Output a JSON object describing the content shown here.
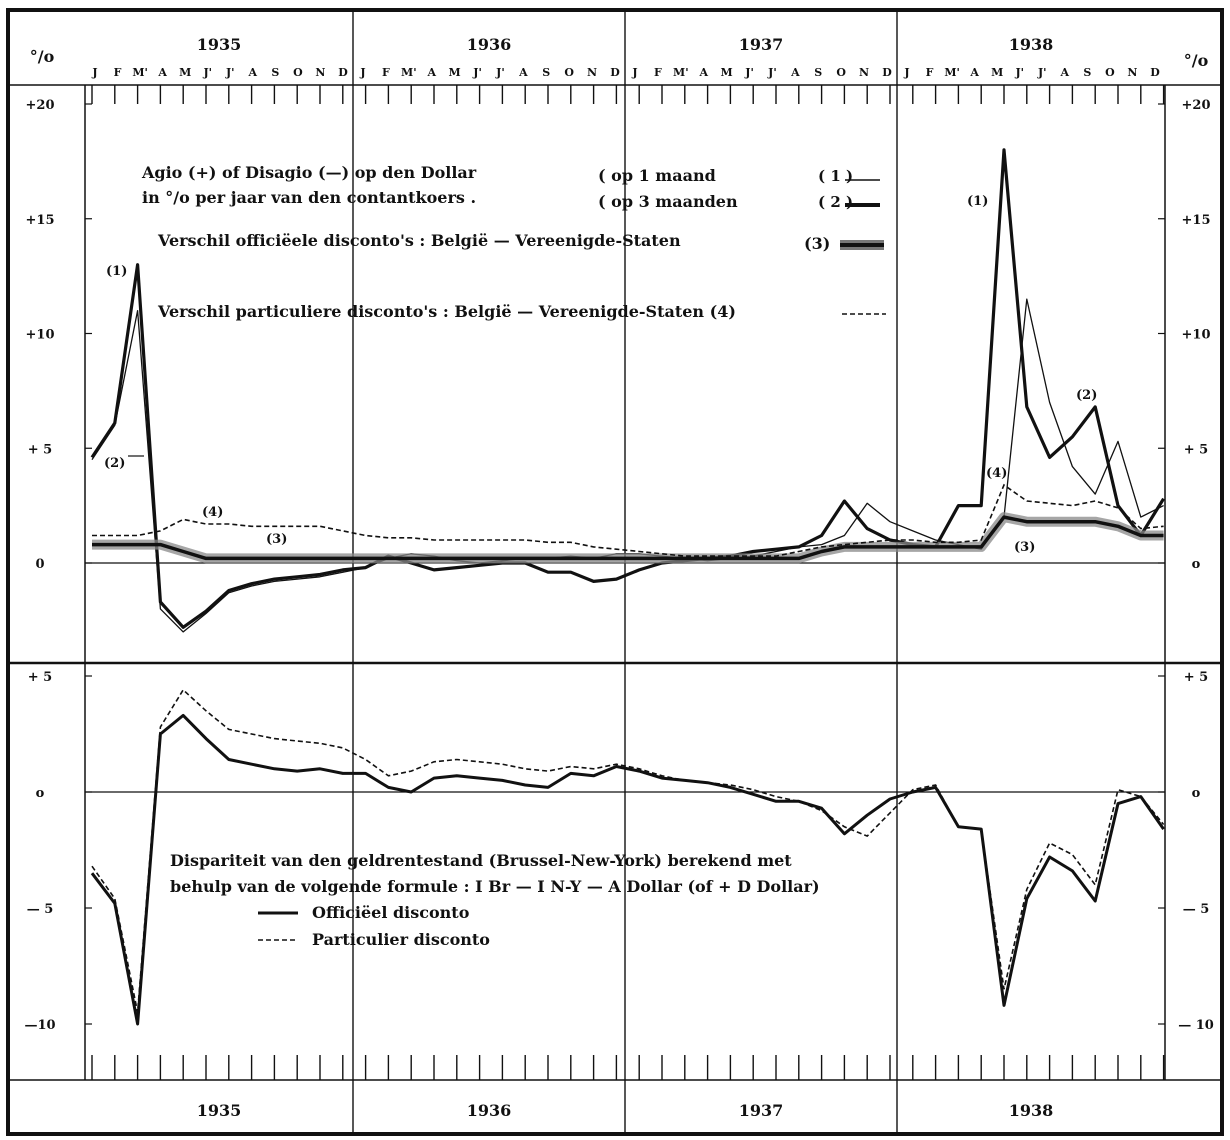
{
  "chart_data": [
    {
      "type": "line",
      "panel": "top",
      "x_unit": "month index (0 = Jan 1935, 47 = Dec 1938)",
      "ylim": [
        -6,
        21
      ],
      "y_unit": "%",
      "y_ticks": [
        {
          "value": 20,
          "label": "+20",
          "right_label": "+20"
        },
        {
          "value": 15,
          "label": "+15",
          "right_label": "+15"
        },
        {
          "value": 10,
          "label": "+10",
          "right_label": "+10"
        },
        {
          "value": 5,
          "label": "+ 5",
          "right_label": "+ 5"
        },
        {
          "value": 0,
          "label": "0",
          "right_label": "o"
        }
      ],
      "y_unit_label": "°/o",
      "legend": {
        "agio_title": "Agio (+) of Disagio (—) op den Dollar",
        "agio_subtitle": "in °/o per jaar van den contantkoers .",
        "s1_label": "( op 1 maand",
        "s1_key": "( 1 )",
        "s2_label": "( op 3 maanden",
        "s2_key": "( 2 )",
        "s3_label": "Verschil officiëele disconto's : België — Vereenigde-Staten",
        "s3_key": "(3)",
        "s4_label": "Verschil particuliere disconto's : België — Vereenigde-Staten (4)"
      },
      "annotations": {
        "a1_left": "(1)",
        "a2_left": "(2)",
        "a4_left": "(4)",
        "a3_left": "(3)",
        "a1_right": "(1)",
        "a2_right": "(2)",
        "a4_right": "(4)",
        "a3_right": "(3)"
      },
      "series": [
        {
          "name": "op 1 maand (1)",
          "style": "thin",
          "values": [
            4.5,
            6.0,
            11.0,
            -2.0,
            -3.0,
            -2.2,
            -1.3,
            -1.0,
            -0.8,
            -0.7,
            -0.6,
            -0.4,
            -0.2,
            0.2,
            0.4,
            0.3,
            0.1,
            0.0,
            0.1,
            0.2,
            0.2,
            0.3,
            0.2,
            0.4,
            0.4,
            0.3,
            0.2,
            0.1,
            0.2,
            0.3,
            0.5,
            0.7,
            0.8,
            1.2,
            2.6,
            1.8,
            1.4,
            1.0,
            0.8,
            0.6,
            2.0,
            11.5,
            7.0,
            4.2,
            3.0,
            5.3,
            2.0,
            2.5
          ]
        },
        {
          "name": "op 3 maanden (2)",
          "style": "thick",
          "values": [
            4.6,
            6.1,
            13.0,
            -1.7,
            -2.8,
            -2.1,
            -1.2,
            -0.9,
            -0.7,
            -0.6,
            -0.5,
            -0.3,
            -0.2,
            0.3,
            0.0,
            -0.3,
            -0.2,
            -0.1,
            0.0,
            0.0,
            -0.4,
            -0.4,
            -0.8,
            -0.7,
            -0.3,
            0.0,
            0.1,
            0.2,
            0.3,
            0.5,
            0.6,
            0.7,
            1.2,
            2.7,
            1.5,
            1.0,
            0.8,
            0.7,
            2.5,
            2.5,
            18.0,
            6.8,
            4.6,
            5.5,
            6.8,
            2.5,
            1.2,
            2.8
          ]
        },
        {
          "name": "Verschil officiëele disconto's (3)",
          "style": "band",
          "values": [
            0.8,
            0.8,
            0.8,
            0.8,
            0.5,
            0.2,
            0.2,
            0.2,
            0.2,
            0.2,
            0.2,
            0.2,
            0.2,
            0.2,
            0.2,
            0.2,
            0.2,
            0.2,
            0.2,
            0.2,
            0.2,
            0.2,
            0.2,
            0.2,
            0.2,
            0.2,
            0.2,
            0.2,
            0.2,
            0.2,
            0.2,
            0.2,
            0.5,
            0.7,
            0.7,
            0.7,
            0.7,
            0.7,
            0.7,
            0.7,
            2.0,
            1.8,
            1.8,
            1.8,
            1.8,
            1.6,
            1.2,
            1.2
          ]
        },
        {
          "name": "Verschil particuliere disconto's (4)",
          "style": "dashed",
          "values": [
            1.2,
            1.2,
            1.2,
            1.4,
            1.9,
            1.7,
            1.7,
            1.6,
            1.6,
            1.6,
            1.6,
            1.4,
            1.2,
            1.1,
            1.1,
            1.0,
            1.0,
            1.0,
            1.0,
            1.0,
            0.9,
            0.9,
            0.7,
            0.6,
            0.5,
            0.4,
            0.3,
            0.3,
            0.3,
            0.3,
            0.3,
            0.5,
            0.7,
            0.8,
            0.9,
            1.0,
            1.0,
            0.9,
            0.9,
            1.0,
            3.4,
            2.7,
            2.6,
            2.5,
            2.7,
            2.4,
            1.5,
            1.6
          ]
        }
      ]
    },
    {
      "type": "line",
      "panel": "bottom",
      "x_unit": "month index (0 = Jan 1935, 47 = Dec 1938)",
      "ylim": [
        -12.5,
        5.5
      ],
      "y_unit": "%",
      "y_ticks": [
        {
          "value": 5,
          "label": "+ 5",
          "right_label": "+ 5"
        },
        {
          "value": 0,
          "label": "o",
          "right_label": "o"
        },
        {
          "value": -5,
          "label": "— 5",
          "right_label": "— 5"
        },
        {
          "value": -10,
          "label": "—10",
          "right_label": "— 10"
        }
      ],
      "legend": {
        "title_line1": "Dispariteit van den geldrentestand (Brussel-New-York) berekend met",
        "title_line2": "behulp van de volgende formule : I Br — I N-Y — A Dollar (of + D Dollar)",
        "s1_label": "Officiëel disconto",
        "s2_label": "Particulier disconto"
      },
      "series": [
        {
          "name": "Officiëel disconto",
          "style": "solid",
          "values": [
            -3.5,
            -4.8,
            -10.0,
            2.5,
            3.3,
            2.3,
            1.4,
            1.2,
            1.0,
            0.9,
            1.0,
            0.8,
            0.8,
            0.2,
            0.0,
            0.6,
            0.7,
            0.6,
            0.5,
            0.3,
            0.2,
            0.8,
            0.7,
            1.1,
            0.9,
            0.6,
            0.5,
            0.4,
            0.2,
            -0.1,
            -0.4,
            -0.4,
            -0.7,
            -1.8,
            -1.0,
            -0.3,
            0.0,
            0.2,
            -1.5,
            -1.6,
            -9.2,
            -4.6,
            -2.8,
            -3.4,
            -4.7,
            -0.5,
            -0.2,
            -1.6
          ]
        },
        {
          "name": "Particulier disconto",
          "style": "dashed",
          "values": [
            -3.2,
            -4.6,
            -9.5,
            2.8,
            4.4,
            3.5,
            2.7,
            2.5,
            2.3,
            2.2,
            2.1,
            1.9,
            1.4,
            0.7,
            0.9,
            1.3,
            1.4,
            1.3,
            1.2,
            1.0,
            0.9,
            1.1,
            1.0,
            1.2,
            1.0,
            0.7,
            0.5,
            0.4,
            0.3,
            0.1,
            -0.2,
            -0.4,
            -0.8,
            -1.5,
            -1.9,
            -0.9,
            0.1,
            0.3,
            -1.5,
            -1.6,
            -8.5,
            -4.2,
            -2.2,
            -2.7,
            -4.0,
            0.1,
            -0.2,
            -1.4
          ]
        }
      ]
    }
  ],
  "axis": {
    "years": [
      "1935",
      "1936",
      "1937",
      "1938"
    ],
    "month_letters": [
      "J",
      "F",
      "M'",
      "A",
      "M",
      "J'",
      "J'",
      "A",
      "S",
      "O",
      "N",
      "D"
    ]
  },
  "colors": {
    "ink": "#111111",
    "band": "#888888",
    "paper": "#ffffff"
  }
}
